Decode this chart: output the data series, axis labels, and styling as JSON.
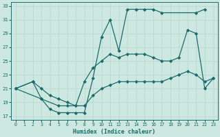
{
  "xlabel": "Humidex (Indice chaleur)",
  "bg_color": "#cce8e0",
  "line_color": "#1a6b6b",
  "grid_color": "#b8d8d0",
  "xlim": [
    -0.5,
    23.5
  ],
  "ylim": [
    16.5,
    33.5
  ],
  "xticks": [
    0,
    1,
    2,
    3,
    4,
    5,
    6,
    7,
    8,
    9,
    10,
    11,
    12,
    13,
    14,
    15,
    16,
    17,
    18,
    19,
    20,
    21,
    22,
    23
  ],
  "yticks": [
    17,
    19,
    21,
    23,
    25,
    27,
    29,
    31,
    33
  ],
  "line1_x": [
    0,
    2,
    3,
    4,
    5,
    6,
    7,
    8,
    9,
    10,
    11,
    12,
    13,
    14,
    15,
    16,
    17,
    21,
    22
  ],
  "line1_y": [
    21,
    22,
    19.5,
    18,
    17.5,
    17.5,
    17.5,
    17.5,
    22.5,
    28.5,
    31.0,
    26.5,
    32.5,
    32.5,
    32.5,
    32.5,
    32.0,
    32.0,
    32.5
  ],
  "line2_x": [
    0,
    2,
    3,
    4,
    5,
    6,
    7,
    8,
    9,
    10,
    11,
    12,
    13,
    14,
    15,
    16,
    17,
    18,
    19,
    20,
    21,
    22,
    23
  ],
  "line2_y": [
    21,
    22,
    21,
    20,
    19.5,
    19,
    18.5,
    22,
    24,
    25,
    26,
    25.5,
    26,
    26,
    26,
    25.5,
    25,
    25,
    25.5,
    29.5,
    29,
    21,
    22.5
  ],
  "line3_x": [
    0,
    3,
    5,
    6,
    7,
    8,
    9,
    10,
    11,
    12,
    13,
    14,
    15,
    16,
    17,
    18,
    19,
    20,
    21,
    22,
    23
  ],
  "line3_y": [
    21,
    19.5,
    18.5,
    18.5,
    18.5,
    18.5,
    20,
    21,
    21.5,
    22,
    22,
    22,
    22,
    22,
    22,
    22.5,
    23,
    23.5,
    23,
    22,
    22.5
  ]
}
